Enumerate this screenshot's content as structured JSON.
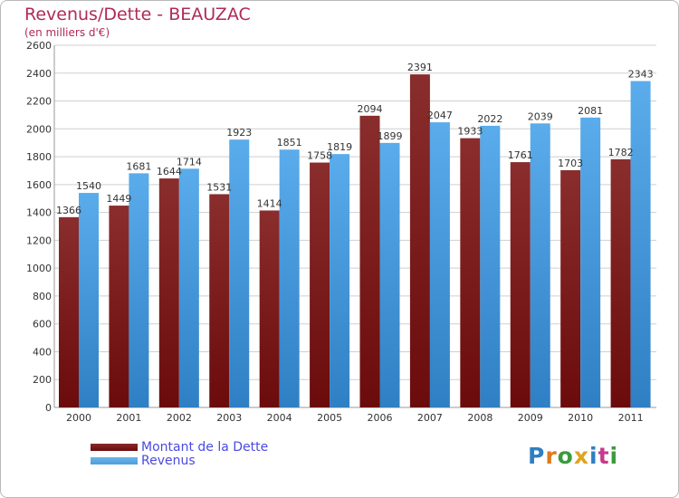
{
  "title": "Revenus/Dette - BEAUZAC",
  "subtitle": "(en milliers d'€)",
  "legend": {
    "debt_label": "Montant de la Dette",
    "revenue_label": "Revenus"
  },
  "logo_text": "Proxiti",
  "colors": {
    "debt": "#6b0b0b",
    "revenue": "#4d9edd",
    "title": "#b02a58",
    "legend_text": "#4a4ae0",
    "grid": "#cfcfcf"
  },
  "chart_data": {
    "type": "bar",
    "title": "Revenus/Dette - BEAUZAC",
    "subtitle": "(en milliers d'€)",
    "categories": [
      "2000",
      "2001",
      "2002",
      "2003",
      "2004",
      "2005",
      "2006",
      "2007",
      "2008",
      "2009",
      "2010",
      "2011"
    ],
    "series": [
      {
        "name": "Montant de la Dette",
        "values": [
          1366,
          1449,
          1644,
          1531,
          1414,
          1758,
          2094,
          2391,
          1933,
          1761,
          1703,
          1782
        ]
      },
      {
        "name": "Revenus",
        "values": [
          1540,
          1681,
          1714,
          1923,
          1851,
          1819,
          1899,
          2047,
          2022,
          2039,
          2081,
          2343
        ]
      }
    ],
    "ylim": [
      0,
      2600
    ],
    "yticks": [
      0,
      200,
      400,
      600,
      800,
      1000,
      1200,
      1400,
      1600,
      1800,
      2000,
      2200,
      2400,
      2600
    ],
    "grid": true,
    "legend_position": "bottom-left"
  }
}
